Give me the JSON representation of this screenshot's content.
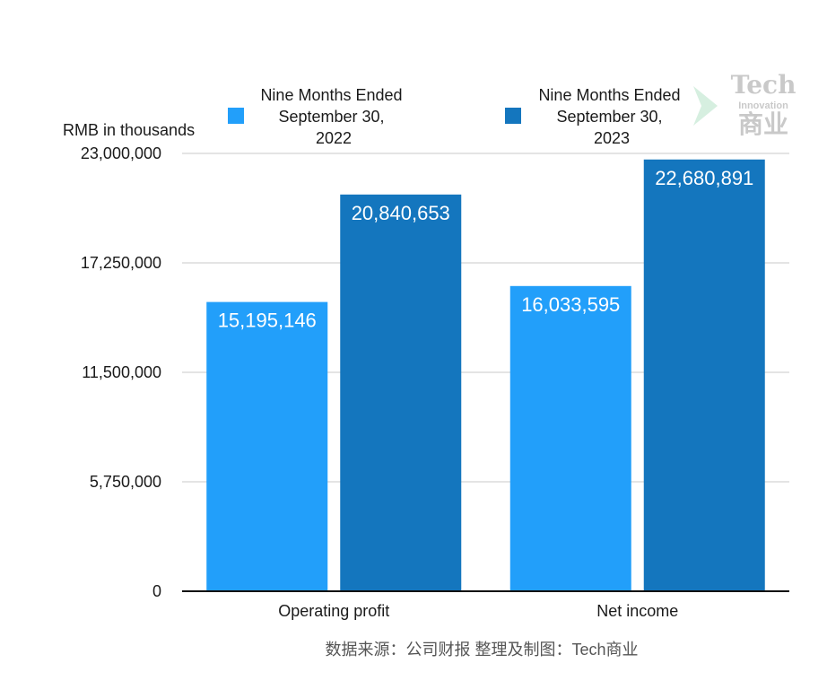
{
  "chart_data": {
    "type": "bar",
    "categories": [
      "Operating profit",
      "Net income"
    ],
    "series": [
      {
        "name": "Nine Months Ended September 30, 2022",
        "name_lines": [
          "Nine Months Ended",
          "September 30,",
          "2022"
        ],
        "values": [
          15195146,
          16033595
        ],
        "value_labels": [
          "15,195,146",
          "16,033,595"
        ],
        "color": "#229ffa"
      },
      {
        "name": "Nine Months Ended September 30, 2023",
        "name_lines": [
          "Nine Months Ended",
          "September 30,",
          "2023"
        ],
        "values": [
          20840653,
          22680891
        ],
        "value_labels": [
          "20,840,653",
          "22,680,891"
        ],
        "color": "#1476be"
      }
    ],
    "ylabel": "RMB in thousands",
    "ylim": [
      0,
      23000000
    ],
    "yticks": [
      0,
      5750000,
      11500000,
      17250000,
      23000000
    ],
    "ytick_labels": [
      "0",
      "5,750,000",
      "11,500,000",
      "17,250,000",
      "23,000,000"
    ],
    "grid": true,
    "legend_position": "top"
  },
  "source_note": "数据来源：公司财报 整理及制图：Tech商业",
  "watermark": {
    "big": "Tech",
    "small": "Innovation",
    "cn": "商业"
  }
}
